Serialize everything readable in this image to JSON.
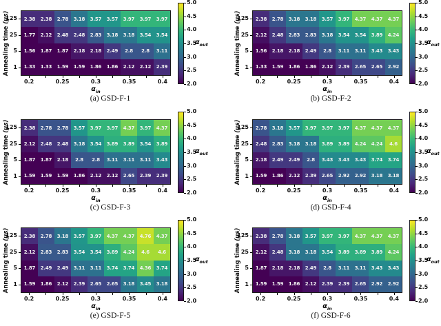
{
  "figure": {
    "ylabel": "Annealing time",
    "ylabel_unit": "(μs)",
    "xlabel_symbol": "α",
    "xlabel_subscript": "in",
    "colorbar": {
      "colormap": "viridis",
      "min": 2.0,
      "max": 5.0,
      "tick_labels": [
        "5.0",
        "4.5",
        "4.0",
        "3.5",
        "3.0",
        "2.5",
        "2.0"
      ],
      "label_symbol": "α",
      "label_subscript": "out",
      "color_min": "#440154",
      "color_max": "#fde725"
    }
  },
  "chart_data": [
    {
      "type": "heatmap",
      "caption": "(a) GSD-F-1",
      "x_tick_labels": [
        "0.2",
        "0.25",
        "0.3",
        "0.35",
        "0.4"
      ],
      "y_tick_labels": [
        "125",
        "25",
        "5",
        "1"
      ],
      "values": [
        [
          2.38,
          2.38,
          2.78,
          3.18,
          3.57,
          3.57,
          3.97,
          3.97,
          3.97
        ],
        [
          1.77,
          2.12,
          2.48,
          2.48,
          2.83,
          3.18,
          3.18,
          3.54,
          3.54
        ],
        [
          1.56,
          1.87,
          1.87,
          2.18,
          2.18,
          2.49,
          2.8,
          2.8,
          3.11
        ],
        [
          1.33,
          1.33,
          1.59,
          1.59,
          1.86,
          1.86,
          2.12,
          2.12,
          2.39
        ]
      ]
    },
    {
      "type": "heatmap",
      "caption": "(b) GSD-F-2",
      "x_tick_labels": [
        "0.2",
        "0.25",
        "0.3",
        "0.35",
        "0.4"
      ],
      "y_tick_labels": [
        "125",
        "25",
        "5",
        "1"
      ],
      "values": [
        [
          2.38,
          2.78,
          3.18,
          3.18,
          3.57,
          3.97,
          4.37,
          4.37,
          4.37
        ],
        [
          2.12,
          2.48,
          2.83,
          2.83,
          3.18,
          3.54,
          3.54,
          3.89,
          4.24
        ],
        [
          1.56,
          2.18,
          2.18,
          2.49,
          2.8,
          3.11,
          3.11,
          3.43,
          3.43
        ],
        [
          1.33,
          1.59,
          1.86,
          1.86,
          2.12,
          2.39,
          2.65,
          2.65,
          2.92
        ]
      ]
    },
    {
      "type": "heatmap",
      "caption": "(c) GSD-F-3",
      "x_tick_labels": [
        "0.2",
        "0.25",
        "0.3",
        "0.35",
        "0.4"
      ],
      "y_tick_labels": [
        "125",
        "25",
        "5",
        "1"
      ],
      "values": [
        [
          2.38,
          2.78,
          2.78,
          3.57,
          3.97,
          3.97,
          4.37,
          3.97,
          4.37
        ],
        [
          2.12,
          2.48,
          2.48,
          3.18,
          3.54,
          3.89,
          3.89,
          3.54,
          3.89
        ],
        [
          1.87,
          1.87,
          2.18,
          2.8,
          2.8,
          3.11,
          3.11,
          3.11,
          3.43
        ],
        [
          1.59,
          1.59,
          1.59,
          1.86,
          2.12,
          2.12,
          2.65,
          2.39,
          2.39
        ]
      ]
    },
    {
      "type": "heatmap",
      "caption": "(d) GSD-F-4",
      "x_tick_labels": [
        "0.2",
        "0.25",
        "0.3",
        "0.35",
        "0.4"
      ],
      "y_tick_labels": [
        "125",
        "25",
        "5",
        "1"
      ],
      "values": [
        [
          2.78,
          3.18,
          3.57,
          3.97,
          3.97,
          3.97,
          4.37,
          4.37,
          4.37
        ],
        [
          2.48,
          2.83,
          3.18,
          3.18,
          3.89,
          3.89,
          4.24,
          4.24,
          4.6
        ],
        [
          2.18,
          2.49,
          2.49,
          2.8,
          3.43,
          3.43,
          3.43,
          3.74,
          3.74
        ],
        [
          1.59,
          1.86,
          2.12,
          2.39,
          2.65,
          2.92,
          2.92,
          3.18,
          3.18
        ]
      ]
    },
    {
      "type": "heatmap",
      "caption": "(e) GSD-F-5",
      "x_tick_labels": [
        "0.2",
        "0.25",
        "0.3",
        "0.35",
        "0.4"
      ],
      "y_tick_labels": [
        "125",
        "25",
        "5",
        "1"
      ],
      "values": [
        [
          2.38,
          2.78,
          3.18,
          3.57,
          3.97,
          4.37,
          4.37,
          4.76,
          4.37
        ],
        [
          2.12,
          2.83,
          2.83,
          3.54,
          3.54,
          3.89,
          4.24,
          4.6,
          4.6
        ],
        [
          1.87,
          2.49,
          2.49,
          3.11,
          3.11,
          3.74,
          3.74,
          4.36,
          3.74
        ],
        [
          1.59,
          1.86,
          2.12,
          2.39,
          2.65,
          2.65,
          3.18,
          3.45,
          3.18
        ]
      ]
    },
    {
      "type": "heatmap",
      "caption": "(f) GSD-F-6",
      "x_tick_labels": [
        "0.2",
        "0.25",
        "0.3",
        "0.35",
        "0.4"
      ],
      "y_tick_labels": [
        "125",
        "25",
        "5",
        "1"
      ],
      "values": [
        [
          2.38,
          2.78,
          3.18,
          3.57,
          3.97,
          3.97,
          4.37,
          4.37,
          4.37
        ],
        [
          2.12,
          2.48,
          3.18,
          3.18,
          3.54,
          3.89,
          3.89,
          3.89,
          4.24
        ],
        [
          1.87,
          2.18,
          2.18,
          2.49,
          2.8,
          3.11,
          3.11,
          3.43,
          3.43
        ],
        [
          1.59,
          1.59,
          1.86,
          2.12,
          2.39,
          2.39,
          2.65,
          2.92,
          2.92
        ]
      ]
    }
  ]
}
